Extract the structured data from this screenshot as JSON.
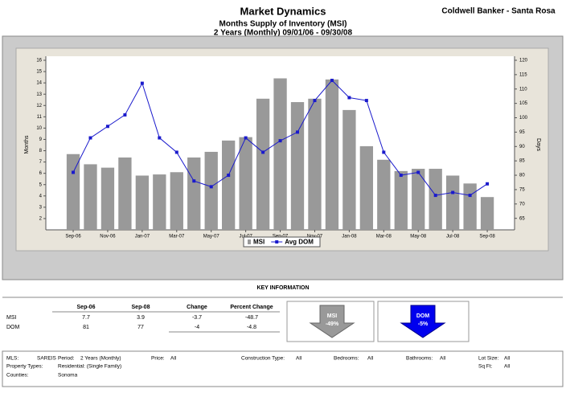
{
  "header": {
    "title": "Market Dynamics",
    "subtitle": "Months Supply of Inventory (MSI)",
    "period": "2 Years (Monthly) 09/01/06 - 09/30/08",
    "company": "Coldwell Banker - Santa Rosa"
  },
  "chart_data": {
    "type": "bar",
    "categories": [
      "Sep-06",
      null,
      "Nov-06",
      null,
      "Jan-07",
      null,
      "Mar-07",
      null,
      "May-07",
      null,
      "Jul-07",
      null,
      "Sep-07",
      null,
      "Nov-07",
      null,
      "Jan-08",
      null,
      "Mar-08",
      null,
      "May-08",
      null,
      "Jul-08",
      null,
      "Sep-08"
    ],
    "y_label": "Months",
    "y2_label": "Days",
    "series": [
      {
        "name": "MSI",
        "type": "bar",
        "color": "#999999",
        "values": [
          7.7,
          6.8,
          6.5,
          7.4,
          5.8,
          5.9,
          6.1,
          7.4,
          7.9,
          8.9,
          9.2,
          12.6,
          14.4,
          12.3,
          12.6,
          14.3,
          11.6,
          8.4,
          7.2,
          6.2,
          6.4,
          6.4,
          5.8,
          5.1,
          3.9
        ]
      },
      {
        "name": "Avg DOM",
        "type": "line",
        "axis": "y2",
        "color": "#1a1acc",
        "values": [
          81,
          93,
          97,
          101,
          112,
          93,
          88,
          78,
          76,
          80,
          93,
          88,
          92,
          95,
          106,
          113,
          107,
          106,
          88,
          80,
          81,
          73,
          74,
          73,
          77
        ]
      }
    ],
    "ylim": [
      1,
      16
    ],
    "yticks": [
      2,
      3,
      4,
      5,
      6,
      7,
      8,
      9,
      10,
      11,
      12,
      13,
      14,
      15,
      16
    ],
    "y2lim": [
      61,
      120
    ],
    "y2ticks": [
      65,
      70,
      75,
      80,
      85,
      90,
      95,
      100,
      105,
      110,
      115,
      120
    ],
    "legend": "bottom"
  },
  "key_info": {
    "title": "KEY INFORMATION",
    "columns": [
      "Sep-06",
      "Sep-08",
      "Change",
      "Percent Change"
    ],
    "rows": [
      [
        "MSI",
        "7.7",
        "3.9",
        "-3.7",
        "-48.7"
      ],
      [
        "DOM",
        "81",
        "77",
        "-4",
        "-4.8"
      ]
    ],
    "indicators": [
      {
        "name": "MSI",
        "change": "-49%"
      },
      {
        "name": "DOM",
        "change": "-5%"
      }
    ]
  },
  "filters": [
    {
      "label": "MLS:",
      "value": "SAREIS"
    },
    {
      "label": "Period:",
      "value": "2 Years (Monthly)"
    },
    {
      "label": "Price:",
      "value": "All"
    },
    {
      "label": "Construction Type:",
      "value": "All"
    },
    {
      "label": "Bedrooms:",
      "value": "All"
    },
    {
      "label": "Bathrooms:",
      "value": "All"
    },
    {
      "label": "Lot Size:",
      "value": "All"
    },
    {
      "label": "Property Types:",
      "value": "Residential: (Single Family)"
    },
    {
      "label": "Sq Ft:",
      "value": "All"
    },
    {
      "label": "Counties:",
      "value": "Sonoma"
    }
  ]
}
